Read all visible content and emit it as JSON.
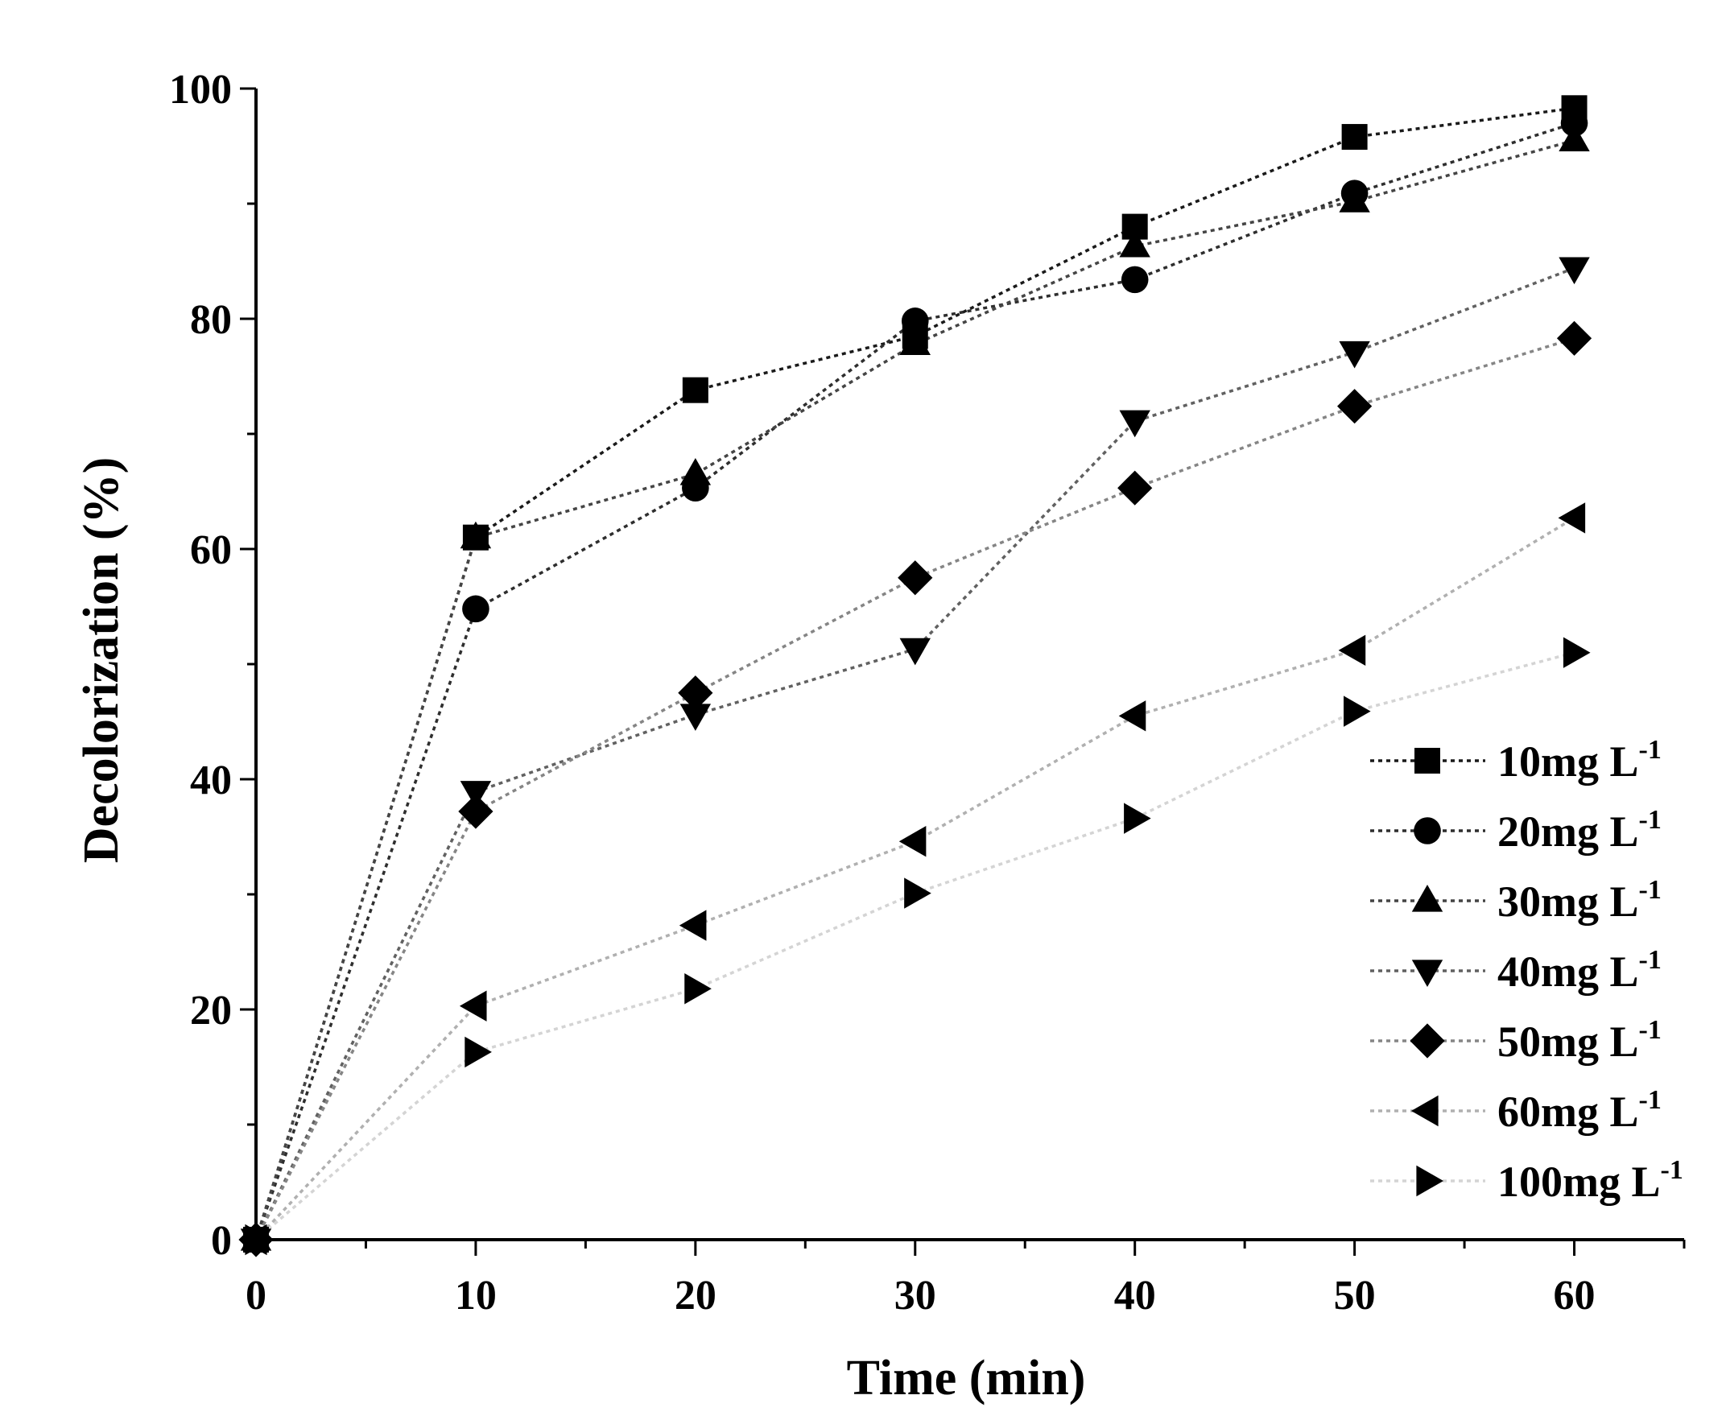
{
  "chart_data": {
    "type": "line",
    "title": "",
    "xlabel": "Time (min)",
    "ylabel": "Decolorization (%)",
    "xlim": [
      0,
      65
    ],
    "ylim": [
      0,
      100
    ],
    "xticks": [
      0,
      10,
      20,
      30,
      40,
      50,
      60
    ],
    "yticks": [
      0,
      20,
      40,
      60,
      80,
      100
    ],
    "grid": false,
    "legend_position": "bottom-right",
    "x": [
      0,
      10,
      20,
      30,
      40,
      50,
      60
    ],
    "series": [
      {
        "name": "10mg L-1",
        "label_main": "10mg L",
        "label_sup": "-1",
        "marker": "square",
        "color": "#1a1a1a",
        "values": [
          0,
          61.0,
          73.8,
          78.5,
          88.0,
          95.8,
          98.3
        ]
      },
      {
        "name": "20mg L-1",
        "label_main": "20mg L",
        "label_sup": "-1",
        "marker": "circle",
        "color": "#2e2e2e",
        "values": [
          0,
          54.8,
          65.3,
          79.8,
          83.4,
          90.9,
          97.0
        ]
      },
      {
        "name": "30mg L-1",
        "label_main": "30mg L",
        "label_sup": "-1",
        "marker": "triangle-up",
        "color": "#454545",
        "values": [
          0,
          61.0,
          66.5,
          77.8,
          86.3,
          90.2,
          95.5
        ]
      },
      {
        "name": "40mg L-1",
        "label_main": "40mg L",
        "label_sup": "-1",
        "marker": "triangle-down",
        "color": "#616161",
        "values": [
          0,
          38.9,
          45.6,
          51.3,
          71.1,
          77.1,
          84.4
        ]
      },
      {
        "name": "50mg L-1",
        "label_main": "50mg L",
        "label_sup": "-1",
        "marker": "diamond",
        "color": "#858585",
        "values": [
          0,
          37.2,
          47.5,
          57.5,
          65.3,
          72.4,
          78.3
        ]
      },
      {
        "name": "60mg L-1",
        "label_main": "60mg L",
        "label_sup": "-1",
        "marker": "triangle-left",
        "color": "#b0b0b0",
        "values": [
          0,
          20.3,
          27.3,
          34.6,
          45.5,
          51.2,
          62.7
        ]
      },
      {
        "name": "100mg L-1",
        "label_main": "100mg L",
        "label_sup": "-1",
        "marker": "triangle-right",
        "color": "#d4d4d4",
        "values": [
          0,
          16.3,
          21.8,
          30.1,
          36.6,
          45.9,
          51.0
        ]
      }
    ]
  }
}
